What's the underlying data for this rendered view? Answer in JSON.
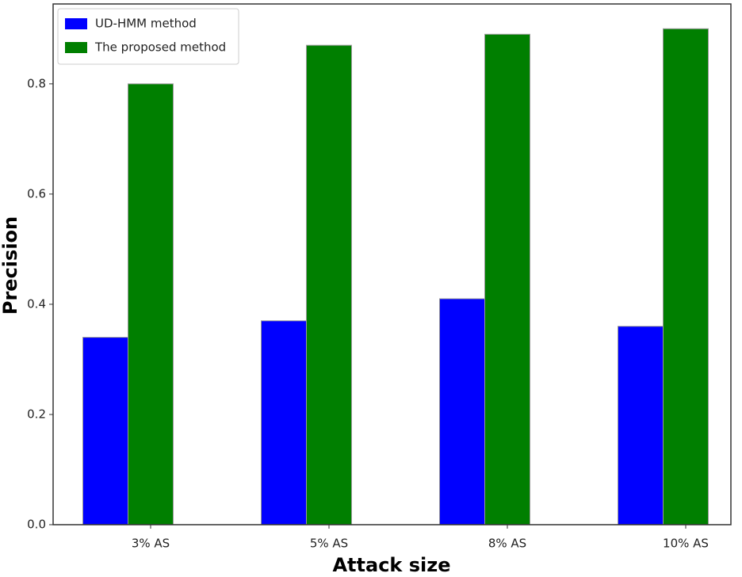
{
  "chart_data": {
    "type": "bar",
    "x_label": "Attack size",
    "y_label": "Precision",
    "categories": [
      "3% AS",
      "5% AS",
      "8% AS",
      "10% AS"
    ],
    "series": [
      {
        "name": "UD-HMM method",
        "color": "#0000ff",
        "values": [
          0.34,
          0.37,
          0.41,
          0.36
        ]
      },
      {
        "name": "The proposed method",
        "color": "#007f00",
        "values": [
          0.8,
          0.87,
          0.89,
          0.9
        ]
      }
    ],
    "ylim": [
      0,
      0.945
    ],
    "yticks": [
      {
        "value": 0,
        "label": "0.0"
      },
      0.2,
      0.4,
      0.6,
      0.8
    ],
    "grid": false,
    "legend": "upper left"
  }
}
